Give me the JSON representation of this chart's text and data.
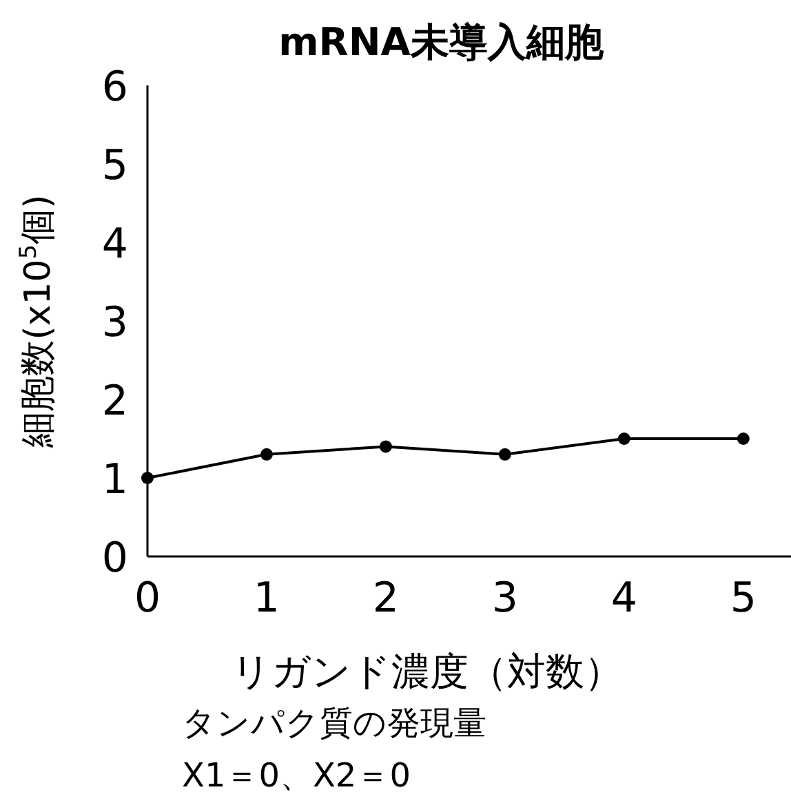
{
  "chart_data": {
    "type": "line",
    "title": "mRNA未導入細胞",
    "xlabel": "リガンド濃度（対数）",
    "ylabel": "細胞数(x10$^{5}$個)",
    "annotations": [
      "タンパク質の発現量",
      "X1＝0、X2＝0"
    ],
    "x": [
      0,
      1,
      2,
      3,
      4,
      5
    ],
    "series": [
      {
        "color": "#000000",
        "values": [
          1.0,
          1.3,
          1.4,
          1.3,
          1.5,
          1.5
        ]
      }
    ],
    "xlim": [
      0,
      5.4
    ],
    "ylim": [
      0,
      6
    ],
    "xticks": [
      0,
      1,
      2,
      3,
      4,
      5
    ],
    "yticks": [
      0,
      1,
      2,
      3,
      4,
      5,
      6
    ],
    "marker": "circle",
    "line_style": "solid",
    "grid": false
  }
}
